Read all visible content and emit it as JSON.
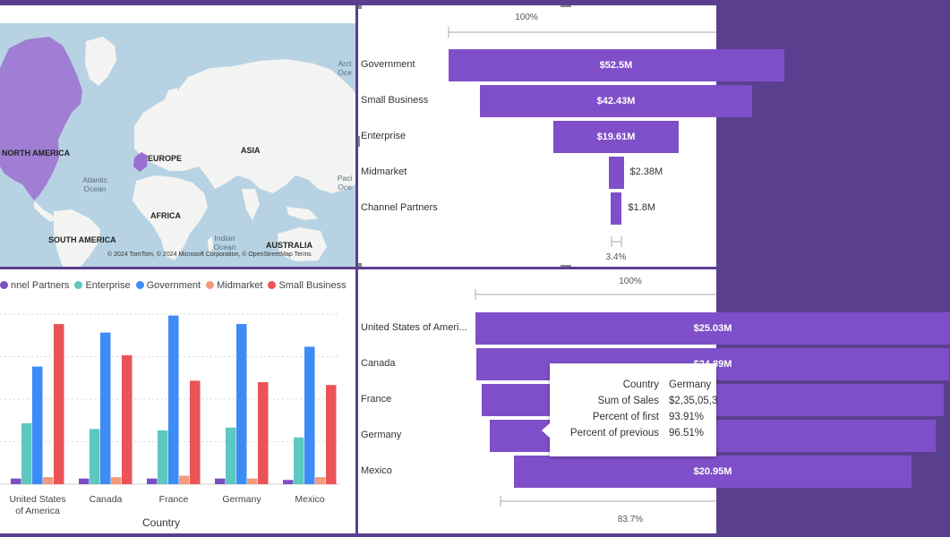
{
  "map": {
    "labels": {
      "north_america": "NORTH AMERICA",
      "europe": "EUROPE",
      "asia": "ASIA",
      "africa": "AFRICA",
      "south_america": "SOUTH AMERICA",
      "australia": "AUSTRALIA"
    },
    "oceans": {
      "atlantic": "Atlantic Ocean",
      "indian": "Indian Ocean",
      "arctic": "Arct Oce",
      "pacific": "Paci Oce"
    },
    "attribution": "© 2024 TomTom, © 2024 Microsoft Corporation, © OpenStreetMap  Terms",
    "colors": {
      "water": "#b7d3e3",
      "land": "#f4f4f2",
      "highlight": "#9b6fd1"
    }
  },
  "funnel_segment": {
    "top_pct": "100%",
    "bottom_pct": "3.4%",
    "items": [
      {
        "label": "Government",
        "value": 52.5,
        "display": "$52.5M"
      },
      {
        "label": "Small Business",
        "value": 42.43,
        "display": "$42.43M"
      },
      {
        "label": "Enterprise",
        "value": 19.61,
        "display": "$19.61M"
      },
      {
        "label": "Midmarket",
        "value": 2.38,
        "display": "$2.38M"
      },
      {
        "label": "Channel Partners",
        "value": 1.8,
        "display": "$1.8M"
      }
    ]
  },
  "clustered": {
    "legend": [
      {
        "name": "nnel Partners",
        "color": "#7b4fc4"
      },
      {
        "name": "Enterprise",
        "color": "#5ec8c0"
      },
      {
        "name": "Government",
        "color": "#3d8bf5"
      },
      {
        "name": "Midmarket",
        "color": "#f49a7c"
      },
      {
        "name": "Small Business",
        "color": "#ea5357"
      }
    ],
    "xlabel": "Country"
  },
  "chart_data": {
    "type": "bar",
    "categories": [
      "United States of America",
      "Canada",
      "France",
      "Germany",
      "Mexico"
    ],
    "category_labels": [
      "United States",
      "Canada",
      "France",
      "Germany",
      "Mexico"
    ],
    "category_labels_line2": [
      "of America",
      "",
      "",
      "",
      ""
    ],
    "xlabel": "Country",
    "ylabel": "",
    "ylim": [
      0,
      12
    ],
    "grid": true,
    "legend_position": "top",
    "series": [
      {
        "name": "Channel Partners",
        "color": "#7b4fc4",
        "values": [
          0.4,
          0.4,
          0.4,
          0.4,
          0.3
        ]
      },
      {
        "name": "Enterprise",
        "color": "#5ec8c0",
        "values": [
          4.3,
          3.9,
          3.8,
          4.0,
          3.3
        ]
      },
      {
        "name": "Government",
        "color": "#3d8bf5",
        "values": [
          8.3,
          10.7,
          11.9,
          11.3,
          9.7
        ]
      },
      {
        "name": "Midmarket",
        "color": "#f49a7c",
        "values": [
          0.5,
          0.5,
          0.6,
          0.4,
          0.5
        ]
      },
      {
        "name": "Small Business",
        "color": "#ea5357",
        "values": [
          11.3,
          9.1,
          7.3,
          7.2,
          7.0
        ]
      }
    ]
  },
  "funnel_country": {
    "top_pct": "100%",
    "bottom_pct": "83.7%",
    "items": [
      {
        "label": "United States of Ameri...",
        "value": 25.03,
        "display": "$25.03M"
      },
      {
        "label": "Canada",
        "value": 24.89,
        "display": "$24.89M"
      },
      {
        "label": "France",
        "value": 24.35,
        "display": ""
      },
      {
        "label": "Germany",
        "value": 23.51,
        "display": ""
      },
      {
        "label": "Mexico",
        "value": 20.95,
        "display": "$20.95M"
      }
    ]
  },
  "tooltip": {
    "rows": [
      {
        "key": "Country",
        "value": "Germany"
      },
      {
        "key": "Sum of Sales",
        "value": "$2,35,05,3"
      },
      {
        "key": "Percent of first",
        "value": "93.91%"
      },
      {
        "key": "Percent of previous",
        "value": "96.51%"
      }
    ]
  }
}
